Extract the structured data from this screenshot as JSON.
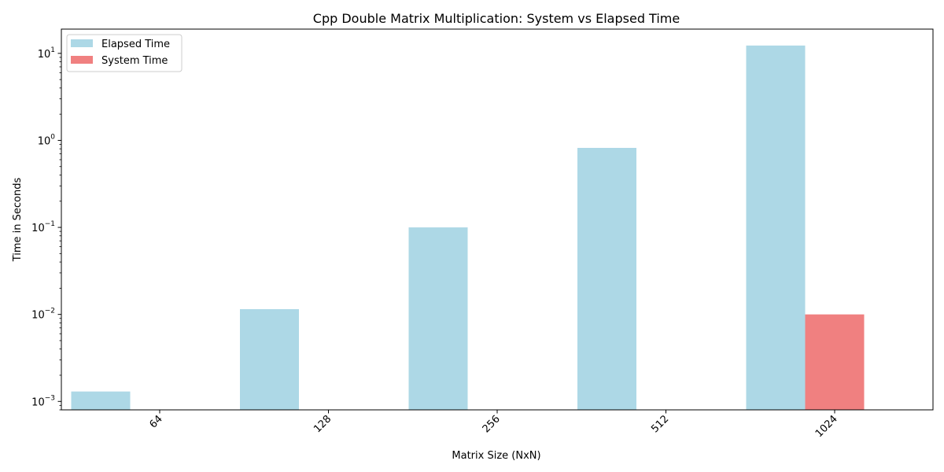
{
  "chart_data": {
    "type": "bar",
    "title": "Cpp Double Matrix Multiplication: System vs Elapsed Time",
    "xlabel": "Matrix Size (NxN)",
    "ylabel": "Time in Seconds",
    "categories": [
      "64",
      "128",
      "256",
      "512",
      "1024"
    ],
    "series": [
      {
        "name": "Elapsed Time",
        "color": "#add8e6",
        "values": [
          0.0013,
          0.0115,
          0.1,
          0.82,
          12.3
        ]
      },
      {
        "name": "System Time",
        "color": "#f08080",
        "values": [
          0,
          0,
          0,
          0,
          0.01
        ]
      }
    ],
    "y_scale": "log",
    "ylim": [
      0.0008,
      19
    ],
    "y_ticks": [
      {
        "value": 0.001,
        "base": "10",
        "exp": "−3"
      },
      {
        "value": 0.01,
        "base": "10",
        "exp": "−2"
      },
      {
        "value": 0.1,
        "base": "10",
        "exp": "−1"
      },
      {
        "value": 1,
        "base": "10",
        "exp": "0"
      },
      {
        "value": 10,
        "base": "10",
        "exp": "1"
      }
    ],
    "grid": false,
    "legend_position": "top-left",
    "x_tick_rotation": -45
  }
}
